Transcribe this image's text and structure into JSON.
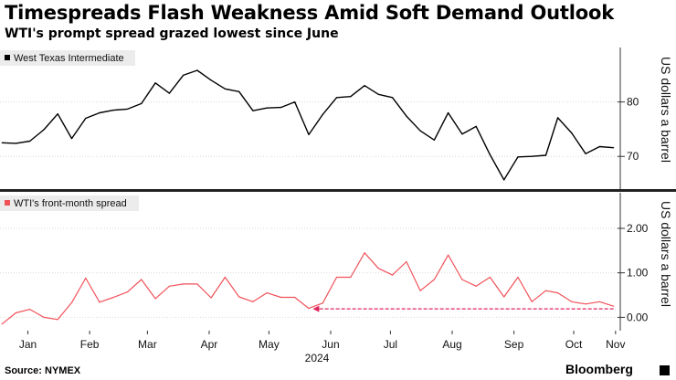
{
  "title": "Timespreads Flash Weakness Amid Soft Demand Outlook",
  "subtitle": "WTI's prompt spread grazed lowest since June",
  "source": "Source: NYMEX",
  "brand": "Bloomberg",
  "colors": {
    "wti": "#000000",
    "spread": "#f0525a",
    "arrow": "#e0245e",
    "legend_bg": "#ececec",
    "grid": "#d9d9d9"
  },
  "chart_data": [
    {
      "type": "line",
      "legend": "West Texas Intermediate",
      "ylabel": "US dollars a barrel",
      "ylim": [
        64,
        90
      ],
      "yticks": [
        70,
        80
      ],
      "ytick_labels": [
        "70",
        "80"
      ],
      "grid": true,
      "legend_position": "top-left",
      "series": [
        {
          "x": [
            "2024-01-02",
            "2024-01-09",
            "2024-01-16",
            "2024-01-23",
            "2024-01-30",
            "2024-02-06",
            "2024-02-13",
            "2024-02-20",
            "2024-02-27",
            "2024-03-05",
            "2024-03-12",
            "2024-03-19",
            "2024-03-26",
            "2024-04-02",
            "2024-04-09",
            "2024-04-16",
            "2024-04-23",
            "2024-04-30",
            "2024-05-07",
            "2024-05-14",
            "2024-05-21",
            "2024-05-28",
            "2024-06-04",
            "2024-06-11",
            "2024-06-18",
            "2024-06-25",
            "2024-07-02",
            "2024-07-09",
            "2024-07-16",
            "2024-07-23",
            "2024-07-30",
            "2024-08-06",
            "2024-08-13",
            "2024-08-20",
            "2024-08-27",
            "2024-09-03",
            "2024-09-10",
            "2024-09-17",
            "2024-09-24",
            "2024-10-01",
            "2024-10-07",
            "2024-10-14",
            "2024-10-21",
            "2024-10-28",
            "2024-11-04"
          ],
          "y": [
            72.5,
            72.4,
            72.8,
            74.9,
            77.8,
            73.3,
            77.0,
            78.0,
            78.5,
            78.7,
            79.7,
            83.5,
            81.6,
            84.9,
            85.8,
            84.0,
            82.4,
            81.9,
            78.4,
            78.9,
            79.0,
            80.0,
            74.0,
            77.7,
            80.8,
            81.0,
            83.0,
            81.4,
            80.8,
            77.4,
            74.7,
            73.0,
            78.0,
            74.1,
            75.5,
            70.3,
            65.7,
            69.9,
            70.0,
            70.2,
            77.1,
            74.3,
            70.5,
            71.8,
            71.6
          ]
        }
      ]
    },
    {
      "type": "line",
      "legend": "WTI's front-month spread",
      "ylabel": "US dollars a barrel",
      "ylim": [
        -0.3,
        2.8
      ],
      "yticks": [
        0,
        1,
        2
      ],
      "ytick_labels": [
        "0.00",
        "1.00",
        "2.00"
      ],
      "grid": true,
      "legend_position": "top-left",
      "xticks": [
        "2024-01-15",
        "2024-02-15",
        "2024-03-15",
        "2024-04-15",
        "2024-05-15",
        "2024-06-15",
        "2024-07-15",
        "2024-08-15",
        "2024-09-15",
        "2024-10-15",
        "2024-11-05"
      ],
      "xtick_labels": [
        "Jan",
        "Feb",
        "Mar",
        "Apr",
        "May",
        "Jun",
        "Jul",
        "Aug",
        "Sep",
        "Oct",
        "Nov"
      ],
      "year_label": "2024",
      "annotation": {
        "type": "arrow",
        "from": [
          "2024-11-04",
          0.19
        ],
        "to": [
          "2024-06-06",
          0.19
        ]
      },
      "series": [
        {
          "x": [
            "2024-01-02",
            "2024-01-09",
            "2024-01-16",
            "2024-01-23",
            "2024-01-30",
            "2024-02-06",
            "2024-02-13",
            "2024-02-20",
            "2024-02-27",
            "2024-03-05",
            "2024-03-12",
            "2024-03-19",
            "2024-03-26",
            "2024-04-02",
            "2024-04-09",
            "2024-04-16",
            "2024-04-23",
            "2024-04-30",
            "2024-05-07",
            "2024-05-14",
            "2024-05-21",
            "2024-05-28",
            "2024-06-04",
            "2024-06-11",
            "2024-06-18",
            "2024-06-25",
            "2024-07-02",
            "2024-07-09",
            "2024-07-16",
            "2024-07-23",
            "2024-07-30",
            "2024-08-06",
            "2024-08-13",
            "2024-08-20",
            "2024-08-27",
            "2024-09-03",
            "2024-09-10",
            "2024-09-17",
            "2024-09-24",
            "2024-10-01",
            "2024-10-07",
            "2024-10-14",
            "2024-10-21",
            "2024-10-28",
            "2024-11-04"
          ],
          "y": [
            -0.15,
            0.1,
            0.18,
            0.0,
            -0.05,
            0.33,
            0.88,
            0.34,
            0.45,
            0.57,
            0.85,
            0.42,
            0.7,
            0.75,
            0.75,
            0.44,
            0.9,
            0.46,
            0.35,
            0.55,
            0.45,
            0.45,
            0.2,
            0.32,
            0.9,
            0.9,
            1.45,
            1.1,
            0.95,
            1.25,
            0.6,
            0.85,
            1.4,
            0.85,
            0.7,
            0.9,
            0.46,
            0.9,
            0.35,
            0.6,
            0.55,
            0.35,
            0.3,
            0.35,
            0.25
          ]
        }
      ]
    }
  ]
}
